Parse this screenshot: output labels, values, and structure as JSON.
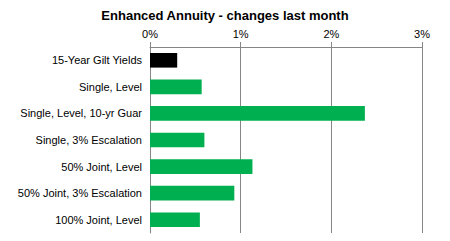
{
  "chart_data": {
    "type": "bar",
    "orientation": "horizontal",
    "title": "Enhanced Annuity - changes last month",
    "categories": [
      "15-Year Gilt Yields",
      "Single, Level",
      "Single, Level, 10-yr Guar",
      "Single, 3% Escalation",
      "50% Joint, Level",
      "50% Joint, 3% Escalation",
      "100% Joint, Level"
    ],
    "values": [
      0.3,
      0.57,
      2.37,
      0.6,
      1.13,
      0.93,
      0.55
    ],
    "colors": [
      "#000000",
      "#00b050",
      "#00b050",
      "#00b050",
      "#00b050",
      "#00b050",
      "#00b050"
    ],
    "xlim": [
      0,
      3
    ],
    "xticks": [
      {
        "value": 0,
        "label": "0%"
      },
      {
        "value": 1,
        "label": "1%"
      },
      {
        "value": 2,
        "label": "2%"
      },
      {
        "value": 3,
        "label": "3%"
      }
    ],
    "grid": true
  }
}
